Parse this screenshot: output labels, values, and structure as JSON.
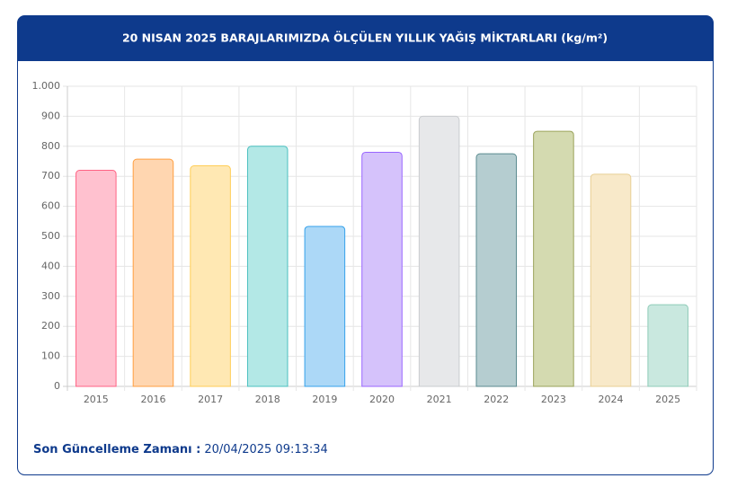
{
  "chart_data": {
    "type": "bar",
    "title": "20 NISAN 2025 BARAJLARIMIZDA ÖLÇÜLEN YILLIK YAĞIŞ MİKTARLARI (kg/m²)",
    "categories": [
      "2015",
      "2016",
      "2017",
      "2018",
      "2019",
      "2020",
      "2021",
      "2022",
      "2023",
      "2024",
      "2025"
    ],
    "values": [
      720,
      757,
      735,
      800,
      533,
      780,
      900,
      775,
      850,
      707,
      272
    ],
    "colors": [
      "#ffc1cf",
      "#ffd6b0",
      "#ffe8b3",
      "#b3e8e6",
      "#acd8f7",
      "#d5c2fb",
      "#e7e8ea",
      "#b5cdd0",
      "#d4dab0",
      "#f8e9c9",
      "#c9e8df"
    ],
    "border_colors": [
      "#ff6384",
      "#ff9f40",
      "#ffcd56",
      "#4bc0c0",
      "#36a2eb",
      "#9966ff",
      "#c9cbcf",
      "#5a8a8f",
      "#9aa35a",
      "#e8cf94",
      "#8fcbb8"
    ],
    "ylim": [
      0,
      1000
    ],
    "yticks": [
      0,
      100,
      200,
      300,
      400,
      500,
      600,
      700,
      800,
      900,
      {
        "value": 1000,
        "label": "1.000"
      }
    ],
    "grid": true
  },
  "footer": {
    "label": "Son Güncelleme Zamanı :",
    "value": "20/04/2025 09:13:34"
  }
}
